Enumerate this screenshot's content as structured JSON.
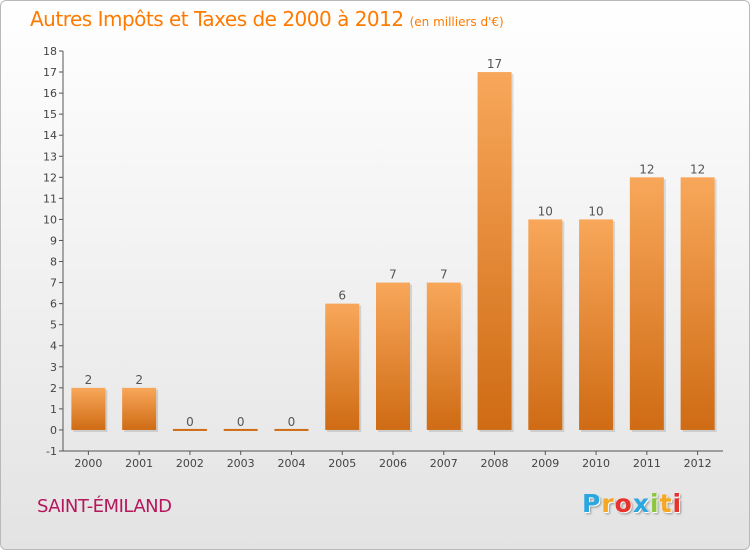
{
  "header": {
    "title": "Autres Impôts et Taxes de 2000 à 2012",
    "subtitle": "(en milliers d'€)"
  },
  "footer": {
    "city": "SAINT-ÉMILAND",
    "logo_text": "Proxiti",
    "logo_letters": [
      {
        "ch": "P",
        "color": "#2aa7e0"
      },
      {
        "ch": "r",
        "color": "#f5a623"
      },
      {
        "ch": "o",
        "color": "#e8322b"
      },
      {
        "ch": "x",
        "color": "#2aa7e0"
      },
      {
        "ch": "i",
        "color": "#8cc63f"
      },
      {
        "ch": "t",
        "color": "#f5a623"
      },
      {
        "ch": "i",
        "color": "#e8322b"
      }
    ]
  },
  "colors": {
    "title": "#ff7a00",
    "city": "#b5165c",
    "bar_light": "#f8a75a",
    "bar_dark": "#cf6b14",
    "axis": "#555555"
  },
  "chart_data": {
    "type": "bar",
    "title": "Autres Impôts et Taxes de 2000 à 2012",
    "subtitle": "(en milliers d'€)",
    "categories": [
      "2000",
      "2001",
      "2002",
      "2003",
      "2004",
      "2005",
      "2006",
      "2007",
      "2008",
      "2009",
      "2010",
      "2011",
      "2012"
    ],
    "values": [
      2,
      2,
      0,
      0,
      0,
      6,
      7,
      7,
      17,
      10,
      10,
      12,
      12
    ],
    "data_labels": [
      "2",
      "2",
      "0",
      "0",
      "0",
      "6",
      "7",
      "7",
      "17",
      "10",
      "10",
      "12",
      "12"
    ],
    "ylim": [
      -1,
      18
    ],
    "yticks": [
      -1,
      0,
      1,
      2,
      3,
      4,
      5,
      6,
      7,
      8,
      9,
      10,
      11,
      12,
      13,
      14,
      15,
      16,
      17,
      18
    ],
    "xlabel": "",
    "ylabel": "",
    "grid": false,
    "legend": "none"
  }
}
